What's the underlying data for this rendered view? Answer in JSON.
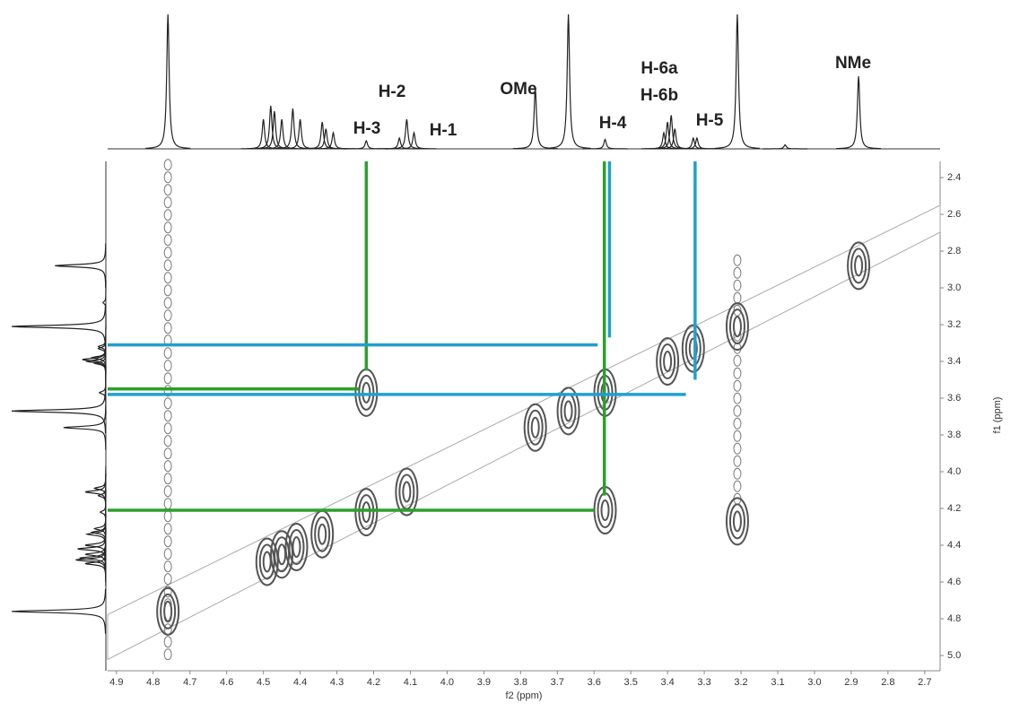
{
  "chart_data": {
    "type": "cosy",
    "xlabel": "f2 (ppm)",
    "ylabel": "f1 (ppm)",
    "xlim": [
      4.924,
      2.658
    ],
    "ylim": [
      2.312,
      5.083
    ],
    "xticks": [
      4.9,
      4.8,
      4.7,
      4.6,
      4.5,
      4.4,
      4.3,
      4.2,
      4.1,
      {
        "value": 4,
        "label": "4.0"
      },
      3.9,
      3.8,
      3.7,
      3.6,
      3.5,
      3.4,
      3.3,
      3.2,
      3.1,
      {
        "value": 3,
        "label": "3.0"
      },
      2.9,
      2.8,
      2.7
    ],
    "yticks": [
      2.4,
      2.6,
      2.8,
      {
        "value": 3,
        "label": "3.0"
      },
      3.2,
      3.4,
      3.6,
      3.8,
      {
        "value": 4,
        "label": "4.0"
      },
      4.2,
      4.4,
      4.6,
      4.8,
      {
        "value": 5,
        "label": "5.0"
      }
    ],
    "annotations": [
      "H-2",
      "H-3",
      "H-1",
      "OMe",
      "H-4",
      "H-6a",
      "H-6b",
      "H-5",
      "NMe"
    ],
    "spectrum": {
      "x": [
        4.76,
        4.5,
        4.48,
        4.47,
        4.45,
        4.42,
        4.4,
        4.34,
        4.33,
        4.31,
        4.22,
        4.13,
        4.11,
        4.09,
        3.76,
        3.67,
        3.57,
        3.41,
        3.4,
        3.39,
        3.38,
        3.33,
        3.32,
        3.21,
        3.08,
        2.88
      ],
      "heights": [
        1.0,
        0.22,
        0.32,
        0.28,
        0.22,
        0.3,
        0.22,
        0.2,
        0.15,
        0.12,
        0.06,
        0.08,
        0.22,
        0.12,
        0.45,
        1.0,
        0.07,
        0.12,
        0.2,
        0.25,
        0.15,
        0.08,
        0.08,
        1.0,
        0.03,
        0.54
      ]
    },
    "peaks": {
      "x": [
        4.76,
        4.49,
        4.45,
        4.41,
        4.34,
        4.22,
        4.11,
        3.76,
        3.67,
        3.57,
        3.4,
        3.33,
        3.21,
        2.88,
        4.22,
        3.57,
        3.21
      ],
      "y": [
        4.76,
        4.49,
        4.45,
        4.41,
        4.34,
        4.22,
        4.11,
        3.76,
        3.67,
        3.57,
        3.4,
        3.33,
        3.21,
        2.88,
        3.57,
        4.21,
        4.27
      ]
    },
    "guides": [
      {
        "color": "#2ca02c",
        "x1": 4.22,
        "x2": 4.22,
        "y1": 2.312,
        "y2": 3.45
      },
      {
        "color": "#2ca02c",
        "x1": 3.572,
        "x2": 3.572,
        "y1": 2.312,
        "y2": 4.13
      },
      {
        "color": "#1fa0d0",
        "x1": 3.558,
        "x2": 3.558,
        "y1": 2.312,
        "y2": 3.27
      },
      {
        "color": "#1fa0d0",
        "x1": 3.325,
        "x2": 3.325,
        "y1": 2.312,
        "y2": 3.5
      },
      {
        "color": "#2ca02c",
        "x1": 4.924,
        "x2": 4.24,
        "y1": 3.55,
        "y2": 3.55
      },
      {
        "color": "#2ca02c",
        "x1": 4.924,
        "x2": 3.6,
        "y1": 4.21,
        "y2": 4.21
      },
      {
        "color": "#1fa0d0",
        "x1": 4.924,
        "x2": 3.59,
        "y1": 3.31,
        "y2": 3.31
      },
      {
        "color": "#1fa0d0",
        "x1": 4.924,
        "x2": 3.35,
        "y1": 3.58,
        "y2": 3.58
      }
    ]
  }
}
